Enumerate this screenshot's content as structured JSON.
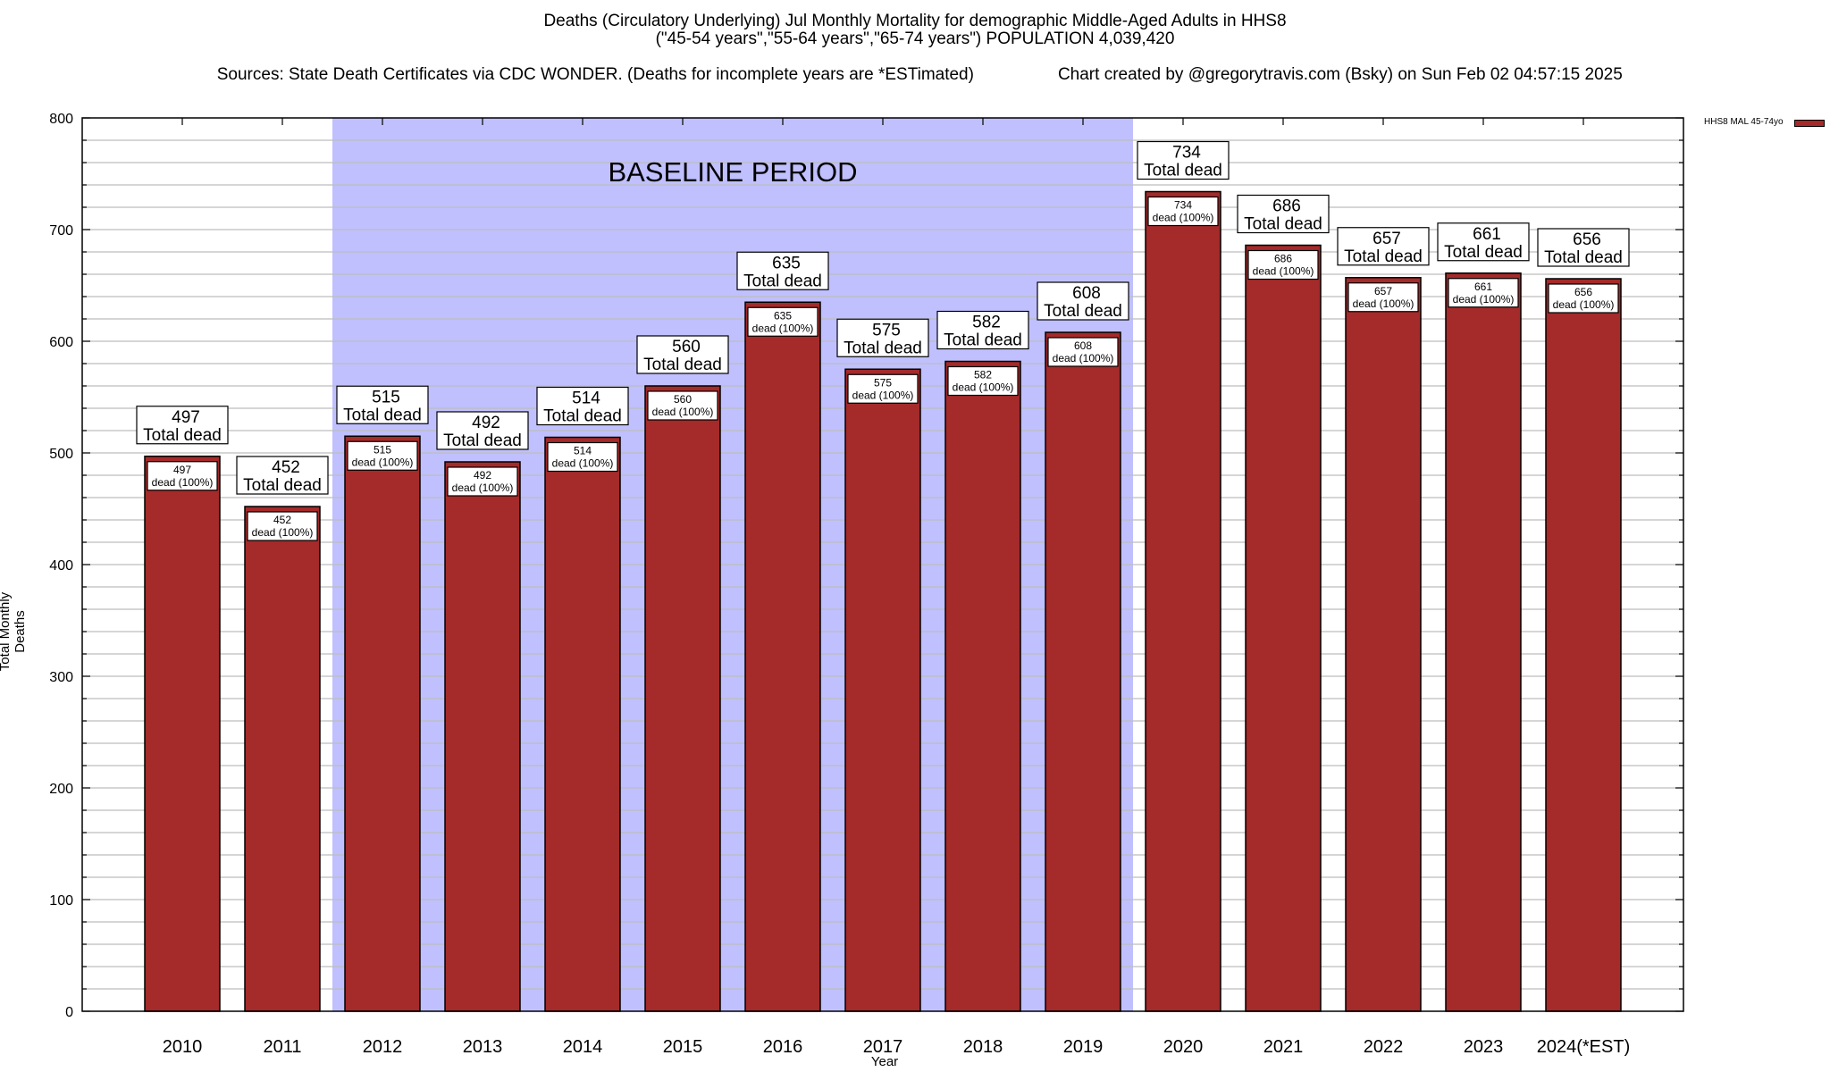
{
  "chart_data": {
    "type": "bar",
    "title": [
      "Deaths (Circulatory Underlying) Jul Monthly Mortality for demographic Middle-Aged Adults in HHS8",
      "(\"45-54 years\",\"55-64 years\",\"65-74 years\") POPULATION 4,039,420"
    ],
    "sources": "Sources: State Death Certificates via CDC WONDER. (Deaths for incomplete years are *ESTimated)",
    "credit": "Chart created by @gregorytravis.com (Bsky) on Sun Feb 02 04:57:15 2025",
    "xlabel": "Year",
    "ylabel": "Total Monthly Deaths",
    "ylim": [
      0,
      800
    ],
    "yticks": [
      0,
      100,
      200,
      300,
      400,
      500,
      600,
      700,
      800
    ],
    "ytick_labels": [
      "0",
      "100",
      "200",
      "300",
      "400",
      "500",
      "600",
      "700",
      "800"
    ],
    "minor_grid_step": 20,
    "grid": true,
    "categories": [
      "2010",
      "2011",
      "2012",
      "2013",
      "2014",
      "2015",
      "2016",
      "2017",
      "2018",
      "2019",
      "2020",
      "2021",
      "2022",
      "2023",
      "2024(*EST)"
    ],
    "series": [
      {
        "name": "HHS8 MAL 45-74yo",
        "color": "#a52a2a",
        "values": [
          497,
          452,
          515,
          492,
          514,
          560,
          635,
          575,
          582,
          608,
          734,
          686,
          657,
          661,
          656
        ]
      }
    ],
    "total_label_suffix": "Total dead",
    "inner_label_suffix": "dead (100%)",
    "baseline": {
      "label": "BASELINE PERIOD",
      "start": "2012",
      "end": "2019",
      "color": "#c0c0ff"
    },
    "legend": {
      "position": "top-right",
      "entries": [
        "HHS8 MAL 45-74yo"
      ]
    }
  }
}
